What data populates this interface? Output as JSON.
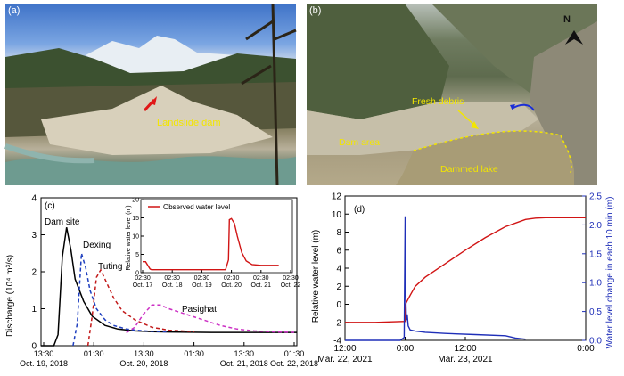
{
  "panel_a": {
    "label": "(a)",
    "annotation": "Landslide dam"
  },
  "panel_b": {
    "label": "(b)",
    "north": "N",
    "annotations": [
      "Fresh debris",
      "Dam area",
      "Dammed lake"
    ]
  },
  "panel_c": {
    "label": "(c)",
    "ylabel": "Discharge (10⁴ m³/s)",
    "series_labels": [
      "Dam site",
      "Dexing",
      "Tuting",
      "Pasighat"
    ],
    "xticks": [
      {
        "time": "13:30",
        "date": "Oct. 19, 2018"
      },
      {
        "time": "01:30",
        "date": ""
      },
      {
        "time": "13:30",
        "date": "Oct. 20, 2018"
      },
      {
        "time": "01:30",
        "date": ""
      },
      {
        "time": "13:30",
        "date": "Oct. 21, 2018"
      },
      {
        "time": "01:30",
        "date": "Oct. 22, 2018"
      }
    ],
    "inset": {
      "legend": "Observed water level",
      "ylabel": "Relative water level (m)",
      "xticks": [
        {
          "time": "02:30",
          "date": "Oct. 17"
        },
        {
          "time": "02:30",
          "date": "Oct. 18"
        },
        {
          "time": "02:30",
          "date": "Oct. 19"
        },
        {
          "time": "02:30",
          "date": "Oct. 20"
        },
        {
          "time": "02:30",
          "date": "Oct. 21"
        },
        {
          "time": "02:30",
          "date": "Oct. 22"
        }
      ]
    }
  },
  "panel_d": {
    "label": "(d)",
    "ylabel_left": "Relative water level (m)",
    "ylabel_right": "Water level change in each 10 min (m)",
    "xticks": [
      {
        "time": "12:00",
        "date": "Mar. 22, 2021"
      },
      {
        "time": "0:00",
        "date": ""
      },
      {
        "time": "12:00",
        "date": "Mar. 23, 2021"
      },
      {
        "time": "0:00",
        "date": ""
      }
    ]
  },
  "chart_data": [
    {
      "type": "line",
      "xlim": [
        0,
        60
      ],
      "ylim": [
        0,
        4
      ],
      "yticks": [
        0,
        1,
        2,
        3,
        4
      ],
      "series": [
        {
          "name": "Dam site",
          "color": "#000000",
          "dash": "solid",
          "x": [
            0,
            3,
            4,
            5,
            6,
            7,
            8,
            10,
            12,
            15,
            18,
            22,
            26,
            30,
            40,
            50,
            60
          ],
          "y": [
            0,
            0,
            0.3,
            2.4,
            3.2,
            2.6,
            1.8,
            1.2,
            0.8,
            0.55,
            0.45,
            0.4,
            0.38,
            0.37,
            0.36,
            0.36,
            0.36
          ]
        },
        {
          "name": "Dexing",
          "color": "#1f3fbf",
          "dash": "dashed",
          "x": [
            7.5,
            8.5,
            9.5,
            10.5,
            11.5,
            13,
            15,
            17,
            20,
            24,
            30
          ],
          "y": [
            0,
            0.6,
            2.5,
            2.1,
            1.5,
            1.0,
            0.7,
            0.55,
            0.45,
            0.4,
            0.37
          ]
        },
        {
          "name": "Tuting",
          "color": "#c21a1a",
          "dash": "dashed",
          "x": [
            11,
            12,
            13,
            14,
            15,
            17,
            19,
            22,
            26,
            30,
            36
          ],
          "y": [
            0,
            0.8,
            1.85,
            2.05,
            1.8,
            1.3,
            0.95,
            0.7,
            0.5,
            0.42,
            0.38
          ]
        },
        {
          "name": "Pasighat",
          "color": "#cc2fc4",
          "dash": "dashed",
          "x": [
            20,
            22,
            24,
            26,
            28,
            30,
            34,
            38,
            42,
            46,
            50,
            55,
            60
          ],
          "y": [
            0.35,
            0.5,
            0.85,
            1.1,
            1.1,
            1.0,
            0.85,
            0.7,
            0.55,
            0.45,
            0.4,
            0.37,
            0.36
          ]
        }
      ]
    },
    {
      "type": "line",
      "xlim": [
        0,
        5
      ],
      "ylim": [
        0,
        20
      ],
      "yticks": [
        0,
        5,
        10,
        15,
        20
      ],
      "series": [
        {
          "name": "Observed water level",
          "color": "#d11414",
          "x": [
            0,
            0.1,
            0.25,
            0.3,
            1.5,
            2.8,
            2.9,
            2.93,
            3.0,
            3.1,
            3.2,
            3.35,
            3.5,
            3.7,
            4.0,
            4.6
          ],
          "y": [
            3.0,
            3.0,
            1.0,
            0.8,
            0.8,
            0.8,
            3.5,
            14.5,
            14.8,
            13.5,
            10.0,
            5.5,
            3.2,
            2.2,
            2.0,
            2.0
          ]
        }
      ]
    },
    {
      "type": "line",
      "xlim": [
        -12,
        36
      ],
      "ylim_left": [
        -4,
        12
      ],
      "ylim_right": [
        0,
        2.5
      ],
      "yticks_left": [
        -4,
        -2,
        0,
        2,
        4,
        6,
        8,
        10,
        12
      ],
      "yticks_right": [
        0.0,
        0.5,
        1.0,
        1.5,
        2.0,
        2.5
      ],
      "series": [
        {
          "name": "Relative water level",
          "axis": "left",
          "color": "#d11414",
          "x": [
            -12,
            -6,
            0,
            0.05,
            1,
            2,
            4,
            8,
            12,
            16,
            20,
            24,
            26,
            28,
            36
          ],
          "y": [
            -2.0,
            -2.0,
            -1.9,
            0.0,
            1.0,
            2.0,
            3.0,
            4.5,
            6.0,
            7.4,
            8.6,
            9.4,
            9.55,
            9.6,
            9.6
          ]
        },
        {
          "name": "Water level change in each 10 min",
          "axis": "right",
          "color": "#1f2fb8",
          "x": [
            -12,
            -1,
            -0.2,
            0,
            0.1,
            0.25,
            0.4,
            0.6,
            1,
            2,
            4,
            8,
            14,
            20,
            22,
            24
          ],
          "y": [
            0,
            0,
            0.05,
            2.15,
            0.8,
            0.35,
            0.45,
            0.25,
            0.18,
            0.16,
            0.14,
            0.12,
            0.1,
            0.08,
            0.04,
            0.02
          ]
        }
      ]
    }
  ]
}
